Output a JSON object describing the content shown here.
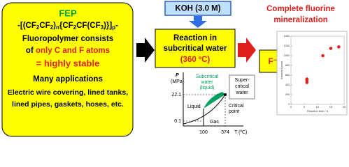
{
  "fep_box": {
    "title": "FEP",
    "formula": [
      "-[(CF",
      "2",
      "CF",
      "2",
      ")",
      "n",
      "{CF",
      "2",
      "CF(CF",
      "3",
      ")}]",
      "p",
      "-"
    ],
    "line1": "Fluoropolymer consists",
    "line2a": "of ",
    "line2b": "only C and F atoms",
    "line3": "= highly stable",
    "line4": "Many applications",
    "line5": "Electric wire covering, lined tanks,",
    "line6": "lined pipes, gaskets, hoses, etc."
  },
  "koh": "KOH (3.0 M)",
  "reaction": {
    "line1": "Reaction in",
    "line2": "subcritical water",
    "line3": "(360 ºC)"
  },
  "phase_diagram": {
    "y_label": "P",
    "y_unit": "(MPa)",
    "y_ticks": [
      "22.1",
      "0.1"
    ],
    "x_ticks": [
      "100",
      "374"
    ],
    "x_label": "T (ºC)",
    "subcritical": [
      "Subcritical",
      "water",
      "(liquid)"
    ],
    "supercritical": [
      "Super-",
      "critical",
      "water"
    ],
    "liquid": "Liquid",
    "gas": "Gas",
    "critical": [
      "Critical",
      "point"
    ]
  },
  "result": {
    "title": [
      "Complete fluorine",
      "mineralization"
    ],
    "ion": "F⁻"
  },
  "chart_data": {
    "type": "scatter",
    "x_label": "Reaction time / h",
    "y_label": "Amount / μmol",
    "color": "#e0201b",
    "x": [
      6,
      6,
      6,
      12,
      15,
      18
    ],
    "values": [
      450,
      500,
      520,
      1000,
      1150,
      1180
    ],
    "xlim": [
      0,
      20
    ],
    "ylim": [
      0,
      1400
    ],
    "xticks": [
      0,
      5,
      10,
      15,
      20
    ],
    "yticks": [
      0,
      200,
      400,
      600,
      800,
      1000,
      1200,
      1400
    ]
  }
}
